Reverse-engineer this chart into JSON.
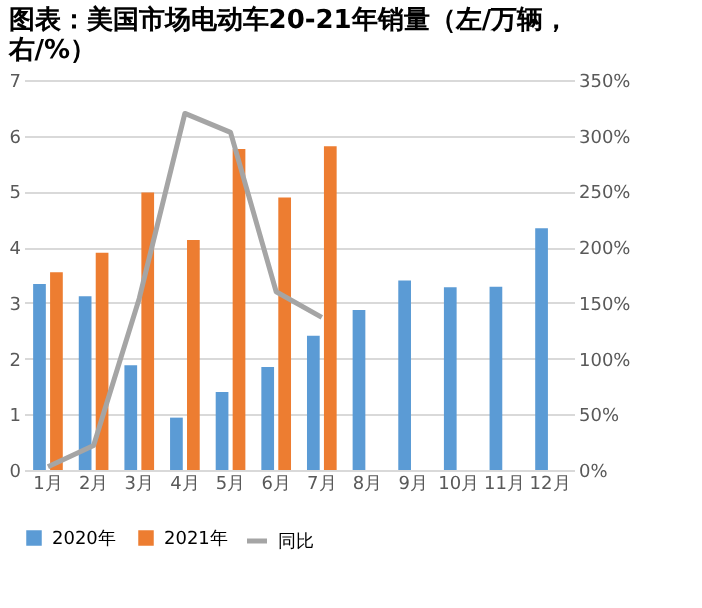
{
  "chart_data": {
    "type": "bar",
    "title": "图表：美国市场电动车20-21年销量（左/万辆，右/%）",
    "categories": [
      "1月",
      "2月",
      "3月",
      "4月",
      "5月",
      "6月",
      "7月",
      "8月",
      "9月",
      "10月",
      "11月",
      "12月"
    ],
    "series": [
      {
        "name": "2020年",
        "color": "#5b9bd5",
        "values": [
          3.34,
          3.12,
          1.88,
          0.94,
          1.4,
          1.85,
          2.41,
          2.87,
          3.4,
          3.28,
          3.29,
          4.34
        ]
      },
      {
        "name": "2021年",
        "color": "#ed7d31",
        "values": [
          3.55,
          3.9,
          4.98,
          4.13,
          5.76,
          4.89,
          5.81,
          null,
          null,
          null,
          null,
          null
        ]
      },
      {
        "name": "同比",
        "color": "#a5a5a5",
        "type": "line",
        "axis": "y2",
        "values": [
          3,
          22,
          154,
          320,
          303,
          160,
          137,
          null,
          null,
          null,
          null,
          null
        ]
      }
    ],
    "ylim": [
      0,
      7
    ],
    "yticks": [
      0,
      1,
      2,
      3,
      4,
      5,
      6,
      7
    ],
    "y2lim": [
      0,
      350
    ],
    "y2ticks": [
      {
        "value": 0,
        "label": "0%"
      },
      {
        "value": 50,
        "label": "50%"
      },
      {
        "value": 100,
        "label": "100%"
      },
      {
        "value": 150,
        "label": "150%"
      },
      {
        "value": 200,
        "label": "200%"
      },
      {
        "value": 250,
        "label": "250%"
      },
      {
        "value": 300,
        "label": "300%"
      },
      {
        "value": 350,
        "label": "350%"
      }
    ],
    "grid": "y",
    "legend": "bottom",
    "marker": "none",
    "line_style": "solid"
  }
}
